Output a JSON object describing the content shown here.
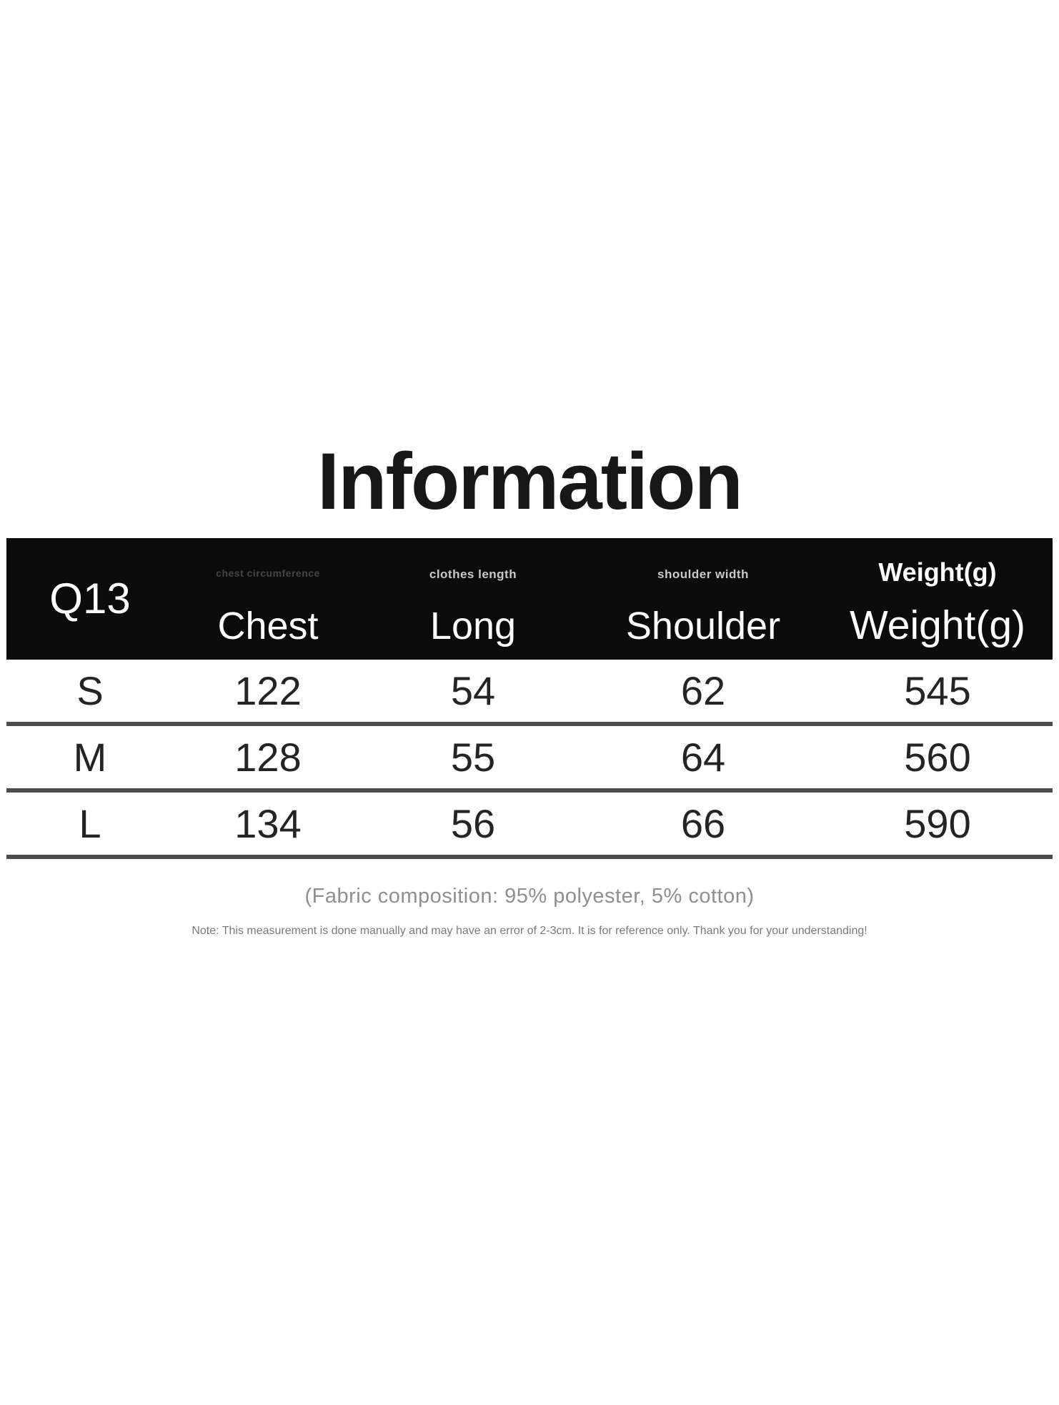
{
  "page": {
    "title": "Information",
    "fabric_note": "(Fabric composition: 95% polyester, 5% cotton)",
    "disclaimer": "Note: This measurement is done manually and may have an error of 2-3cm. It is for reference only. Thank you for your understanding!"
  },
  "size_table": {
    "product_code": "Q13",
    "columns": [
      {
        "id": "chest",
        "sub_label": "chest circumference",
        "label": "Chest"
      },
      {
        "id": "long",
        "sub_label": "clothes length",
        "label": "Long"
      },
      {
        "id": "shoulder",
        "sub_label": "shoulder width",
        "label": "Shoulder"
      },
      {
        "id": "weight",
        "sub_label": "Weight(g)",
        "label": "Weight(g)"
      }
    ],
    "rows": [
      {
        "size": "S",
        "chest": "122",
        "long": "54",
        "shoulder": "62",
        "weight": "545"
      },
      {
        "size": "M",
        "chest": "128",
        "long": "55",
        "shoulder": "64",
        "weight": "560"
      },
      {
        "size": "L",
        "chest": "134",
        "long": "56",
        "shoulder": "66",
        "weight": "590"
      }
    ]
  },
  "colors": {
    "header_bg": "#0b0b0b",
    "header_text": "#ffffff",
    "sub_label_dim": "#454545",
    "sub_label_light": "#c9c9c9",
    "divider": "#4d4d4d",
    "value_text": "#242424",
    "note_text": "#8f8f8f"
  },
  "chart_data": {
    "type": "table",
    "title": "Information",
    "columns": [
      "Q13",
      "Chest",
      "Long",
      "Shoulder",
      "Weight(g)"
    ],
    "rows": [
      [
        "S",
        122,
        54,
        62,
        545
      ],
      [
        "M",
        128,
        55,
        64,
        560
      ],
      [
        "L",
        134,
        56,
        66,
        590
      ]
    ]
  }
}
